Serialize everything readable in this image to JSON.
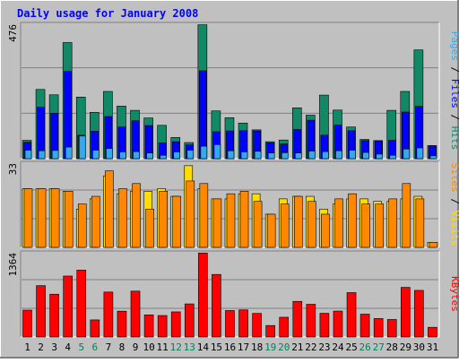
{
  "chart_data": {
    "type": "bar",
    "title": "Daily usage for January 2008",
    "x": [
      "1",
      "2",
      "3",
      "4",
      "5",
      "6",
      "7",
      "8",
      "9",
      "10",
      "11",
      "12",
      "13",
      "14",
      "15",
      "16",
      "17",
      "18",
      "19",
      "20",
      "21",
      "22",
      "23",
      "24",
      "25",
      "26",
      "27",
      "28",
      "29",
      "30",
      "31"
    ],
    "weekend_days": [
      "5",
      "6",
      "12",
      "13",
      "19",
      "20",
      "26",
      "27"
    ],
    "panels": [
      {
        "id": "hits",
        "ymax_label": "476",
        "ylim": [
          0,
          476
        ],
        "ylabel_parts": [
          {
            "text": "Pages",
            "color": "#33aaee"
          },
          {
            "text": " / ",
            "color": "#000000"
          },
          {
            "text": "Files",
            "color": "#0000ff"
          },
          {
            "text": " / ",
            "color": "#000000"
          },
          {
            "text": "Hits",
            "color": "#118866"
          }
        ],
        "series": [
          {
            "name": "Hits",
            "color": "#118866",
            "values": [
              65,
              245,
              226,
              411,
              218,
              164,
              238,
              186,
              171,
              144,
              118,
              75,
              57,
              474,
              169,
              145,
              126,
              102,
              60,
              66,
              180,
              154,
              225,
              172,
              112,
              68,
              64,
              171,
              238,
              385,
              46
            ]
          },
          {
            "name": "Files",
            "color": "#0000ff",
            "values": [
              58,
              182,
              161,
              309,
              83,
              97,
              149,
              112,
              134,
              117,
              56,
              60,
              49,
              311,
              95,
              98,
              99,
              98,
              56,
              52,
              103,
              136,
              83,
              119,
              99,
              64,
              62,
              65,
              165,
              185,
              46
            ]
          },
          {
            "name": "Pages",
            "color": "#33aaee",
            "values": [
              30,
              28,
              29,
              41,
              80,
              30,
              36,
              24,
              25,
              20,
              12,
              24,
              30,
              44,
              50,
              28,
              24,
              26,
              20,
              21,
              20,
              27,
              25,
              28,
              30,
              22,
              16,
              12,
              34,
              38,
              10
            ]
          }
        ]
      },
      {
        "id": "visits",
        "ymax_label": "33",
        "ylim": [
          0,
          33
        ],
        "ylabel_parts": [
          {
            "text": "Sites",
            "color": "#ff8800"
          },
          {
            "text": " / ",
            "color": "#000000"
          },
          {
            "text": "Visits",
            "color": "#ffdd00"
          }
        ],
        "series": [
          {
            "name": "Visits",
            "color": "#ffdd00",
            "values": [
              23,
              23,
              23,
              22,
              15,
              19,
              28,
              21,
              22,
              22,
              23,
              20,
              32,
              23,
              19,
              19,
              21,
              21,
              13,
              19,
              20,
              20,
              15,
              17,
              19,
              19,
              18,
              18,
              19,
              20,
              2
            ]
          },
          {
            "name": "Sites",
            "color": "#ff8800",
            "values": [
              23,
              23,
              23,
              22,
              17,
              20,
              30,
              23,
              25,
              15,
              22,
              20,
              26,
              25,
              19,
              21,
              22,
              18,
              13,
              17,
              20,
              18,
              13,
              19,
              21,
              17,
              17,
              19,
              25,
              19,
              2
            ]
          }
        ]
      },
      {
        "id": "kbytes",
        "ymax_label": "1364",
        "ylim": [
          0,
          1364
        ],
        "ylabel_parts": [
          {
            "text": "KBytes",
            "color": "#ff0000"
          }
        ],
        "series": [
          {
            "name": "KBytes",
            "color": "#ff0000",
            "values": [
              435,
              832,
              693,
              987,
              1083,
              277,
              728,
              418,
              743,
              358,
              348,
              407,
              536,
              1360,
              1013,
              429,
              439,
              382,
              186,
              320,
              577,
              530,
              384,
              420,
              719,
              370,
              300,
              284,
              804,
              755,
              157
            ]
          }
        ]
      }
    ],
    "legend_placement": "right"
  },
  "colors": {
    "background": "#c0c0c0",
    "grid": "#808080",
    "title": "#0000ff",
    "axis_text_weekday": "#000000",
    "axis_text_weekend": "#00805c"
  }
}
